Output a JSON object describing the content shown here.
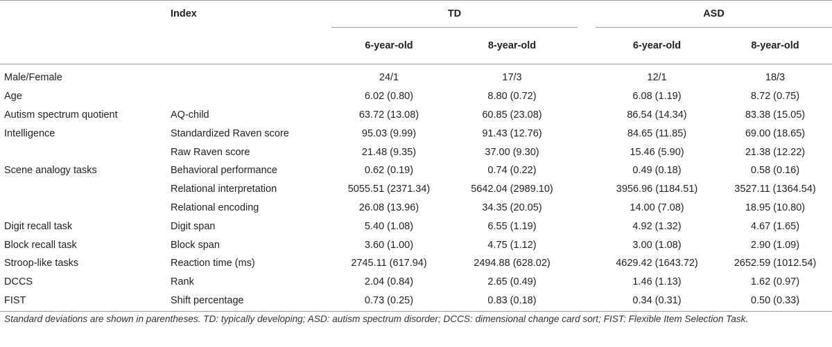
{
  "header": {
    "index_label": "Index",
    "groups": [
      "TD",
      "ASD"
    ],
    "age_columns": [
      "6-year-old",
      "8-year-old",
      "6-year-old",
      "8-year-old"
    ]
  },
  "rows": [
    {
      "label": "Male/Female",
      "index": "",
      "values": [
        "24/1",
        "17/3",
        "12/1",
        "18/3"
      ]
    },
    {
      "label": "Age",
      "index": "",
      "values": [
        "6.02 (0.80)",
        "8.80 (0.72)",
        "6.08 (1.19)",
        "8.72 (0.75)"
      ]
    },
    {
      "label": "Autism spectrum quotient",
      "index": "AQ-child",
      "values": [
        "63.72 (13.08)",
        "60.85 (23.08)",
        "86.54 (14.34)",
        "83.38 (15.05)"
      ]
    },
    {
      "label": "Intelligence",
      "index": "Standardized Raven score",
      "values": [
        "95.03 (9.99)",
        "91.43 (12.76)",
        "84.65 (11.85)",
        "69.00 (18.65)"
      ]
    },
    {
      "label": "",
      "index": "Raw Raven score",
      "values": [
        "21.48 (9.35)",
        "37.00 (9.30)",
        "15.46 (5.90)",
        "21.38 (12.22)"
      ]
    },
    {
      "label": "Scene analogy tasks",
      "index": "Behavioral performance",
      "values": [
        "0.62 (0.19)",
        "0.74 (0.22)",
        "0.49 (0.18)",
        "0.58 (0.16)"
      ]
    },
    {
      "label": "",
      "index": "Relational interpretation",
      "values": [
        "5055.51 (2371.34)",
        "5642.04 (2989.10)",
        "3956.96 (1184.51)",
        "3527.11 (1364.54)"
      ]
    },
    {
      "label": "",
      "index": "Relational encoding",
      "values": [
        "26.08 (13.96)",
        "34.35 (20.05)",
        "14.00 (7.08)",
        "18.95 (10.80)"
      ]
    },
    {
      "label": "Digit recall task",
      "index": "Digit span",
      "values": [
        "5.40 (1.08)",
        "6.55 (1.19)",
        "4.92 (1.32)",
        "4.67 (1.65)"
      ]
    },
    {
      "label": "Block recall task",
      "index": "Block span",
      "values": [
        "3.60 (1.00)",
        "4.75 (1.12)",
        "3.00 (1.08)",
        "2.90 (1.09)"
      ]
    },
    {
      "label": "Stroop-like tasks",
      "index": "Reaction time (ms)",
      "values": [
        "2745.11 (617.94)",
        "2494.88 (628.02)",
        "4629.42 (1643.72)",
        "2652.59 (1012.54)"
      ]
    },
    {
      "label": "DCCS",
      "index": "Rank",
      "values": [
        "2.04 (0.84)",
        "2.65 (0.49)",
        "1.46 (1.13)",
        "1.62 (0.97)"
      ]
    },
    {
      "label": "FIST",
      "index": "Shift percentage",
      "values": [
        "0.73 (0.25)",
        "0.83 (0.18)",
        "0.34 (0.31)",
        "0.50 (0.33)"
      ]
    }
  ],
  "footnote": "Standard deviations are shown in parentheses. TD: typically developing; ASD: autism spectrum disorder; DCCS: dimensional change card sort; FIST: Flexible Item Selection Task."
}
